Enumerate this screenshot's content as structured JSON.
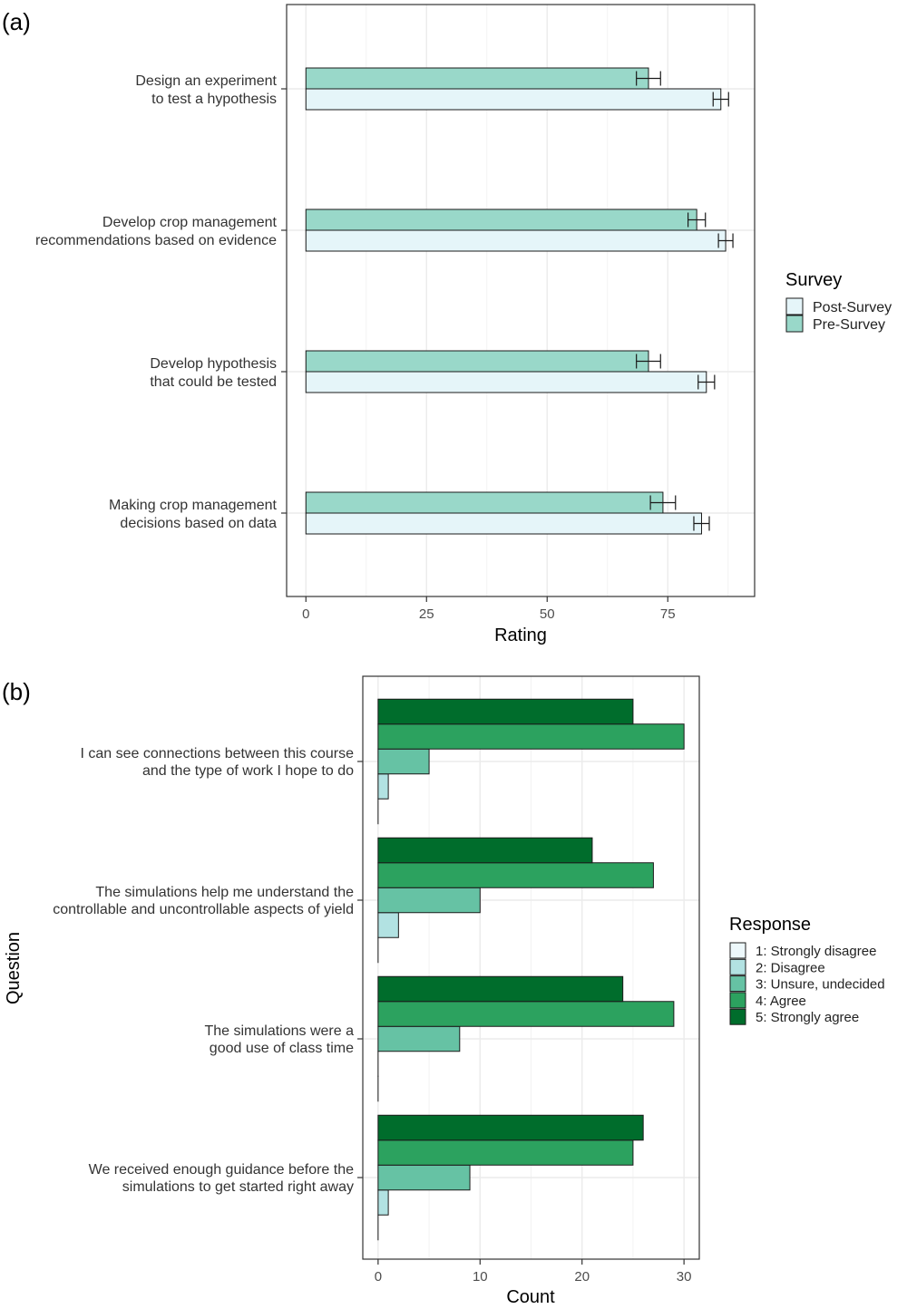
{
  "chart_data": [
    {
      "panel_label": "(a)",
      "type": "bar",
      "orientation": "horizontal",
      "categories": [
        [
          "Design an experiment",
          "to test a hypothesis"
        ],
        [
          "Develop crop management",
          "recommendations based on evidence"
        ],
        [
          "Develop hypothesis",
          "that could be tested"
        ],
        [
          "Making crop management",
          "decisions based on data"
        ]
      ],
      "series": [
        {
          "name": "Pre-Survey",
          "color": "#99d8c9",
          "values": [
            71,
            81,
            71,
            74
          ],
          "errors": [
            2.5,
            1.8,
            2.5,
            2.6
          ]
        },
        {
          "name": "Post-Survey",
          "color": "#e5f5f9",
          "values": [
            86,
            87,
            83,
            82
          ],
          "errors": [
            1.6,
            1.5,
            1.7,
            1.6
          ]
        }
      ],
      "xlabel": "Rating",
      "xlim": [
        -4,
        93
      ],
      "xticks": [
        0,
        25,
        50,
        75
      ],
      "grid": true,
      "legend": {
        "title": "Survey",
        "placement": "right",
        "order": [
          "Post-Survey",
          "Pre-Survey"
        ]
      }
    },
    {
      "panel_label": "(b)",
      "type": "bar",
      "orientation": "horizontal",
      "categories": [
        [
          "I can see connections between this course",
          "and the type of work I hope to do"
        ],
        [
          "The simulations help me understand the",
          "controllable and uncontrollable aspects of yield"
        ],
        [
          "The simulations were a",
          "good use of class time"
        ],
        [
          "We received enough guidance before the",
          "simulations to get started right away"
        ]
      ],
      "series": [
        {
          "name": "1: Strongly disagree",
          "color": "#edf8fb",
          "values": [
            0,
            0,
            0,
            0
          ]
        },
        {
          "name": "2: Disagree",
          "color": "#b2e2e2",
          "values": [
            1,
            2,
            0,
            1
          ]
        },
        {
          "name": "3: Unsure, undecided",
          "color": "#66c2a4",
          "values": [
            5,
            10,
            8,
            9
          ]
        },
        {
          "name": "4: Agree",
          "color": "#2ca25f",
          "values": [
            30,
            27,
            29,
            25
          ]
        },
        {
          "name": "5: Strongly agree",
          "color": "#006d2c",
          "values": [
            25,
            21,
            24,
            26
          ]
        }
      ],
      "xlabel": "Count",
      "ylabel": "Question",
      "xlim": [
        -1.5,
        31.5
      ],
      "xticks": [
        0,
        10,
        20,
        30
      ],
      "grid": true,
      "legend": {
        "title": "Response",
        "placement": "right"
      }
    }
  ]
}
